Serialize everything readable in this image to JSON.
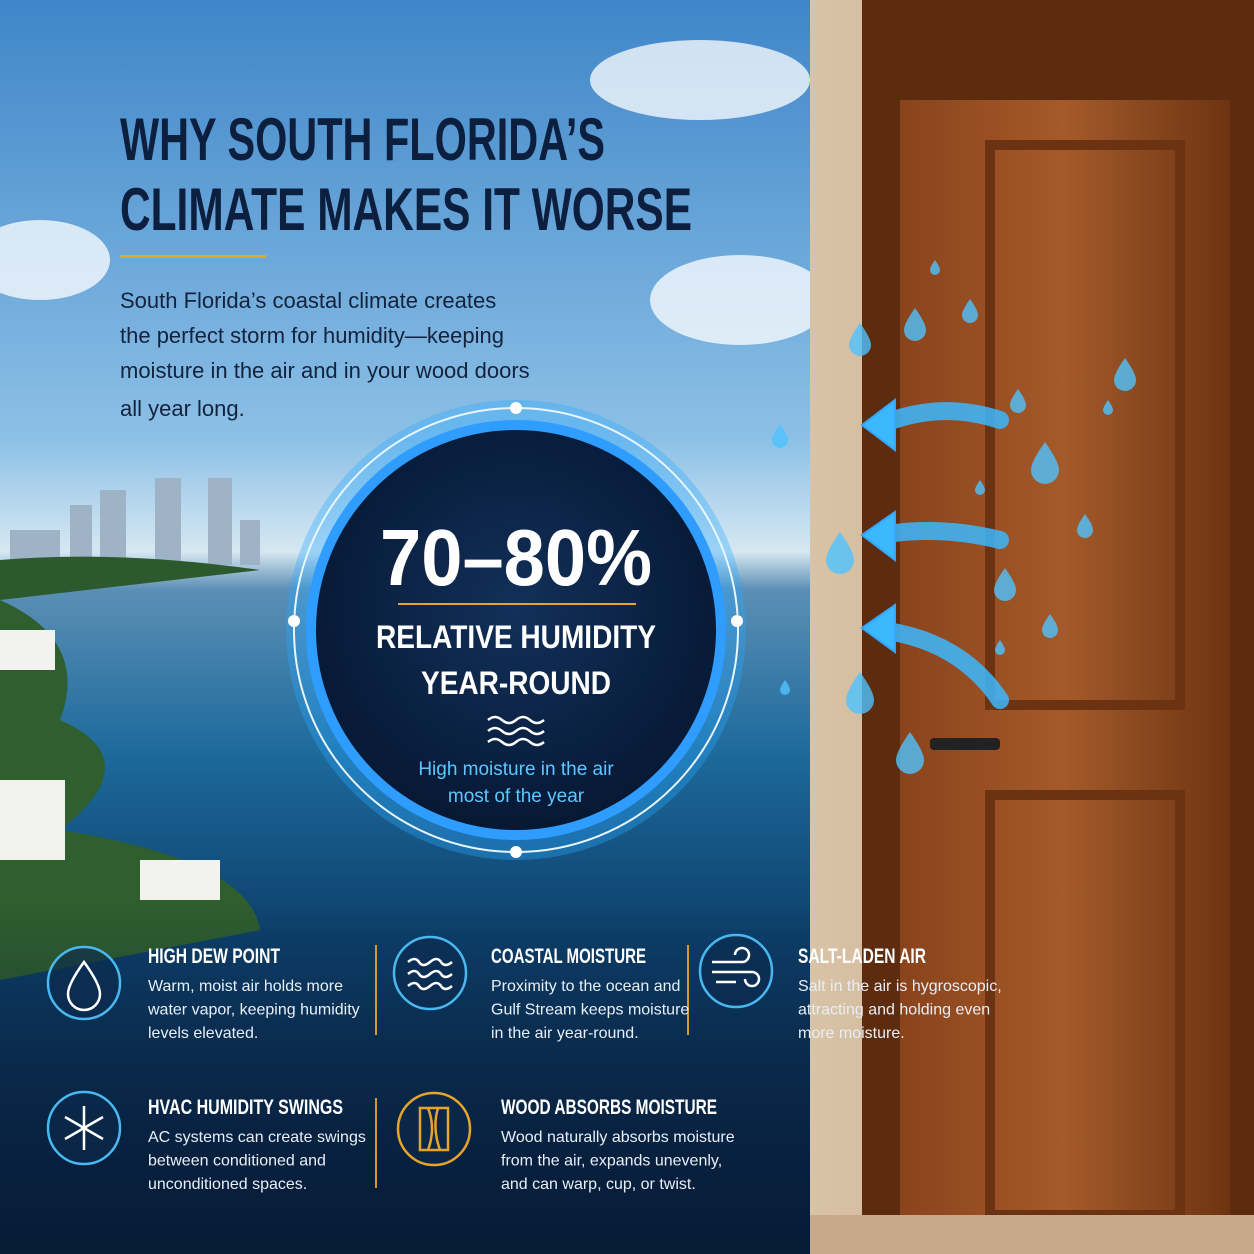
{
  "header": {
    "title_lines": [
      "WHY SOUTH FLORIDA’S",
      "CLIMATE MAKES IT WORSE"
    ],
    "intro_lines": [
      "South Florida’s coastal climate creates",
      "the perfect storm for humidity—keeping",
      "moisture in the air and in your wood doors",
      "all year long."
    ]
  },
  "stat": {
    "value": "70–80%",
    "label_lines": [
      "RELATIVE HUMIDITY",
      "YEAR-ROUND"
    ],
    "caption_lines": [
      "High moisture in the air",
      "most of the year"
    ]
  },
  "factors": [
    {
      "title": "HIGH DEW POINT",
      "text_lines": [
        "Warm, moist air holds more",
        "water vapor, keeping humidity",
        "levels elevated."
      ]
    },
    {
      "title": "COASTAL MOISTURE",
      "text_lines": [
        "Proximity to the ocean and",
        "Gulf Stream keeps moisture",
        "in the air year-round."
      ]
    },
    {
      "title": "SALT-LADEN AIR",
      "text_lines": [
        "Salt in the air is hygroscopic,",
        "attracting and holding even",
        "more moisture."
      ]
    },
    {
      "title": "HVAC HUMIDITY SWINGS",
      "text_lines": [
        "AC systems can create swings",
        "between conditioned and",
        "unconditioned spaces."
      ]
    },
    {
      "title": "WOOD ABSORBS MOISTURE",
      "text_lines": [
        "Wood naturally absorbs moisture",
        "from the air, expands unevenly,",
        "and can warp, cup, or twist."
      ]
    }
  ]
}
